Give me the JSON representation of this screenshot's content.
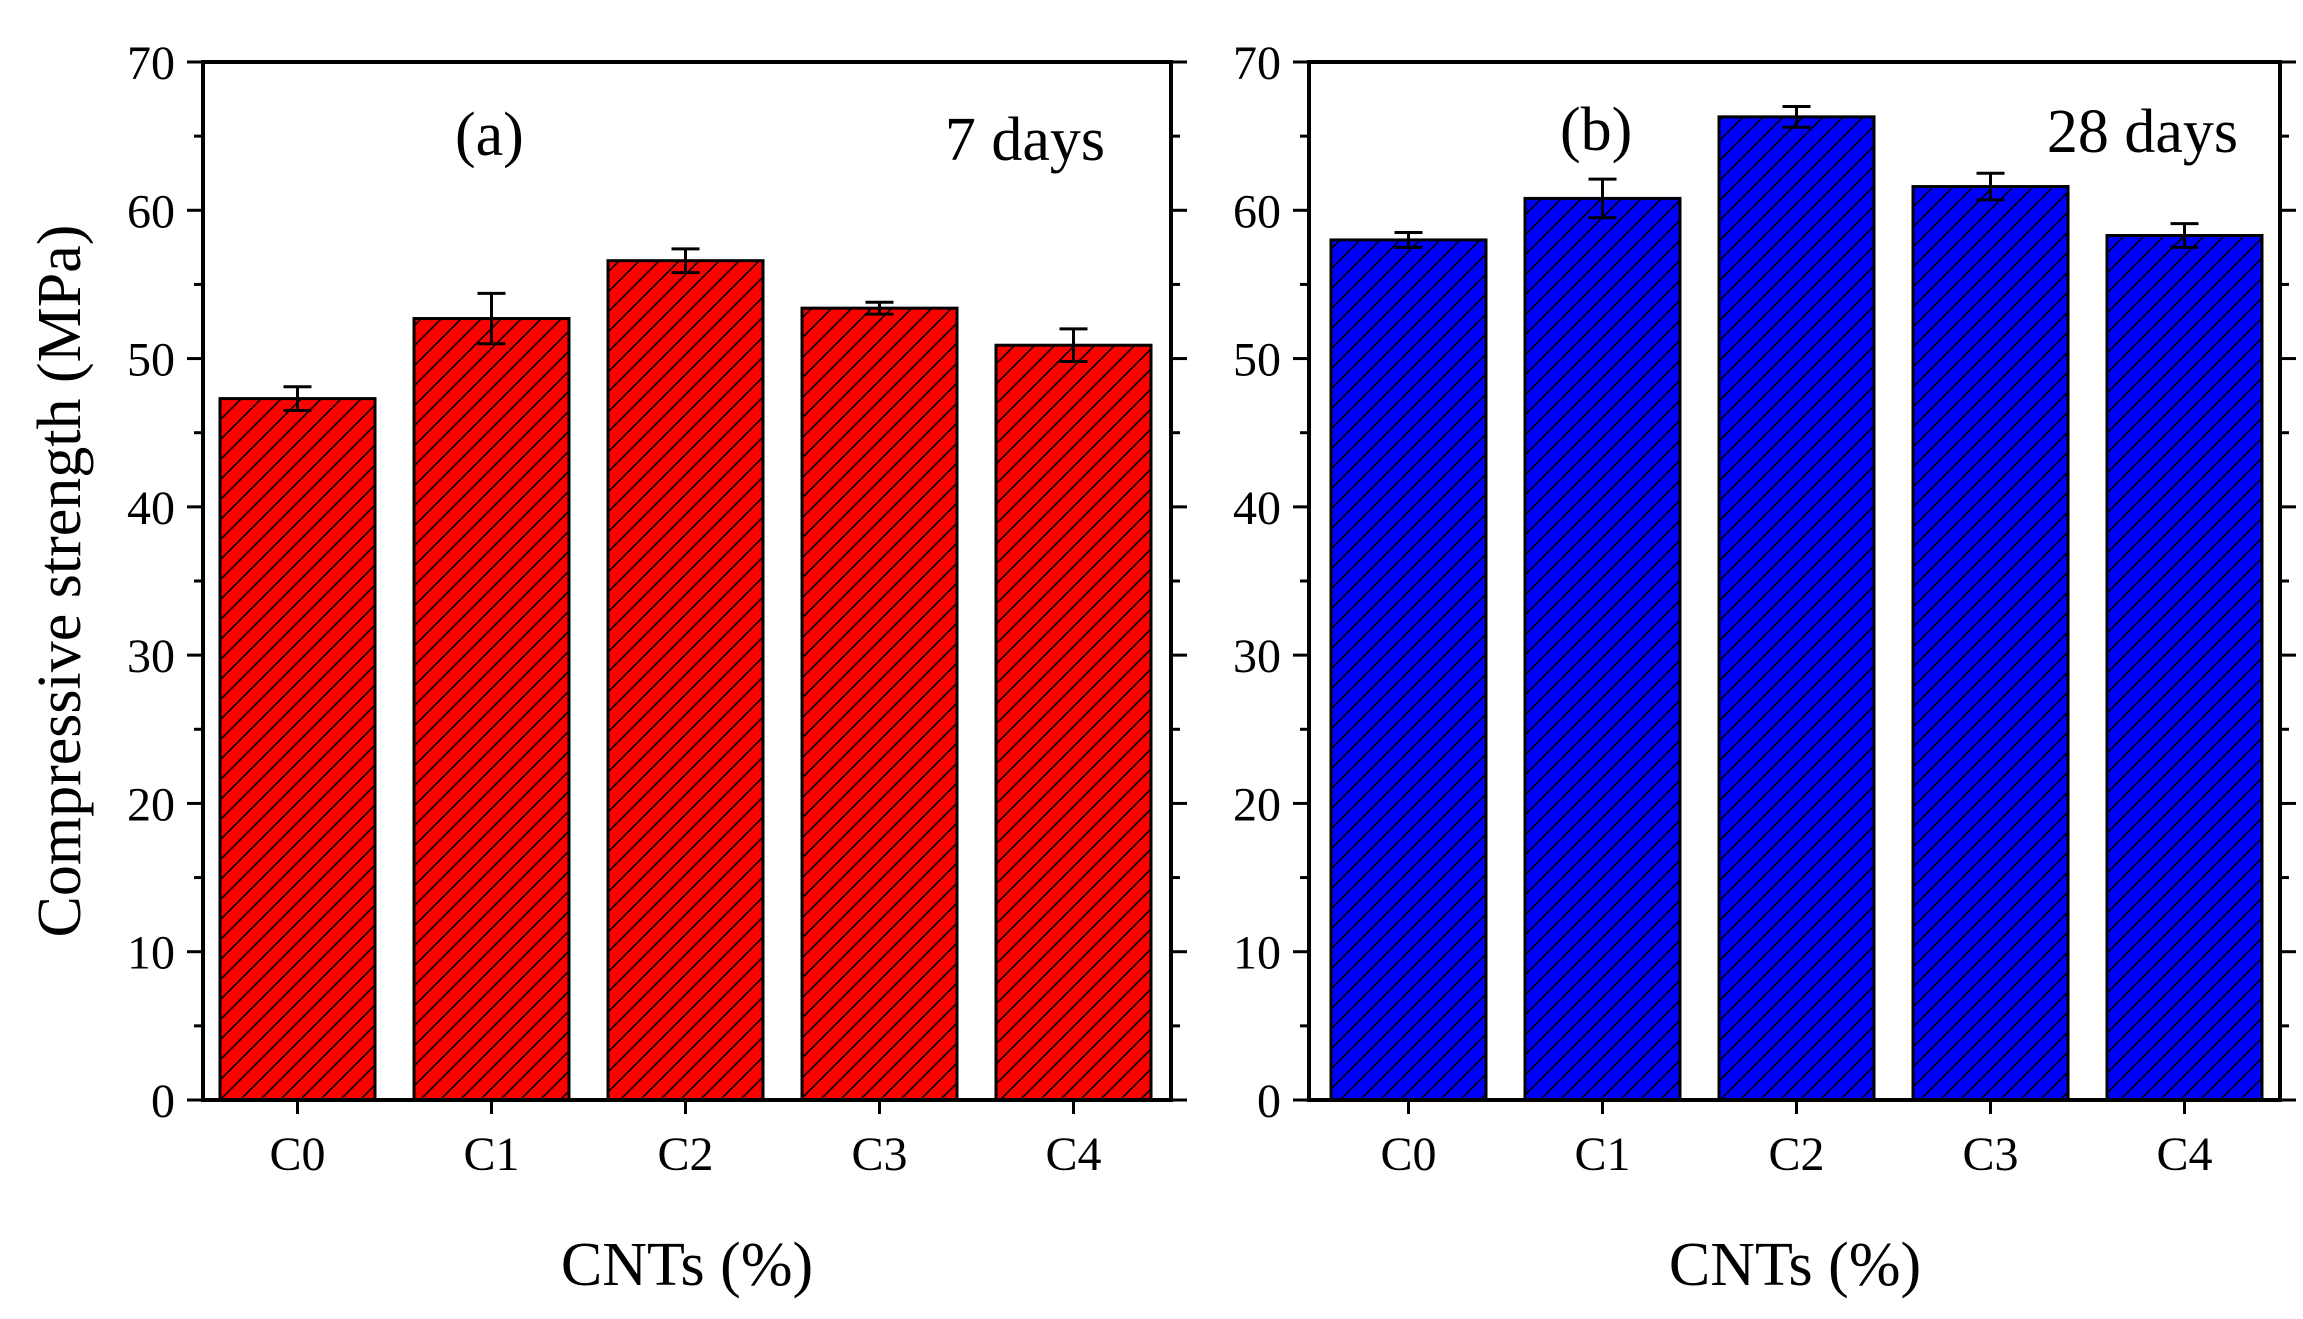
{
  "colors": {
    "panel_a_fill": "#ff0000",
    "panel_b_fill": "#0000ff",
    "outline": "#000000"
  },
  "chart_data": [
    {
      "type": "bar",
      "panel_label": "(a)",
      "annotation": "7 days",
      "categories": [
        "C0",
        "C1",
        "C2",
        "C3",
        "C4"
      ],
      "values": [
        47.3,
        52.7,
        56.6,
        53.4,
        50.9
      ],
      "errors": [
        0.8,
        1.7,
        0.8,
        0.4,
        1.1
      ],
      "fill_color": "#ff0000",
      "pattern": "diagonal-hatch",
      "xlabel": "CNTs (%)",
      "ylabel": "Compressive strength (MPa)",
      "ylim": [
        0,
        70
      ],
      "yticks": [
        0,
        10,
        20,
        30,
        40,
        50,
        60,
        70
      ],
      "legend": "none",
      "grid": false
    },
    {
      "type": "bar",
      "panel_label": "(b)",
      "annotation": "28 days",
      "categories": [
        "C0",
        "C1",
        "C2",
        "C3",
        "C4"
      ],
      "values": [
        58.0,
        60.8,
        66.3,
        61.6,
        58.3
      ],
      "errors": [
        0.5,
        1.3,
        0.7,
        0.9,
        0.8
      ],
      "fill_color": "#0000ff",
      "pattern": "diagonal-hatch",
      "xlabel": "CNTs (%)",
      "ylabel": "",
      "ylim": [
        0,
        70
      ],
      "yticks": [
        0,
        10,
        20,
        30,
        40,
        50,
        60,
        70
      ],
      "legend": "none",
      "grid": false
    }
  ]
}
